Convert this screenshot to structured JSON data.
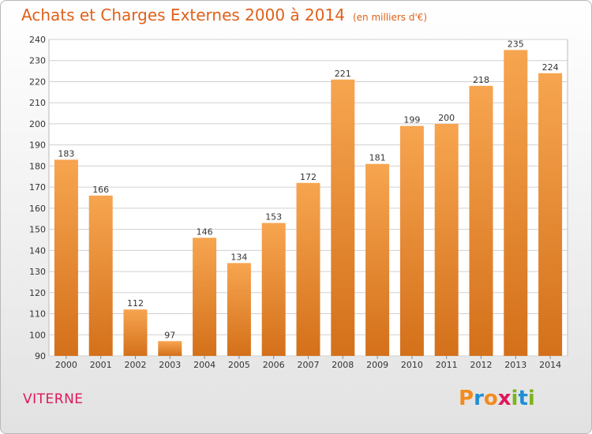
{
  "title": "Achats et Charges Externes 2000 à 2014",
  "unit": "(en milliers d'€)",
  "commune": "VITERNE",
  "logo": {
    "text": "Proxiti",
    "letters": [
      {
        "ch": "P",
        "color": "#f28b1e"
      },
      {
        "ch": "r",
        "color": "#1e8fd6"
      },
      {
        "ch": "o",
        "color": "#f28b1e"
      },
      {
        "ch": "x",
        "color": "#e0175a"
      },
      {
        "ch": "i",
        "color": "#7ab51d"
      },
      {
        "ch": "t",
        "color": "#1e8fd6"
      },
      {
        "ch": "i",
        "color": "#7ab51d"
      }
    ]
  },
  "colors": {
    "title": "#e0601a",
    "commune": "#e0175a",
    "bar_light": "#f7a550",
    "bar_dark": "#d4701a",
    "grid": "#d0d0d0"
  },
  "chart_data": {
    "type": "bar",
    "categories": [
      "2000",
      "2001",
      "2002",
      "2003",
      "2004",
      "2005",
      "2006",
      "2007",
      "2008",
      "2009",
      "2010",
      "2011",
      "2012",
      "2013",
      "2014"
    ],
    "values": [
      183,
      166,
      112,
      97,
      146,
      134,
      153,
      172,
      221,
      181,
      199,
      200,
      218,
      235,
      224
    ],
    "ylim": [
      90,
      240
    ],
    "yticks": [
      90,
      100,
      110,
      120,
      130,
      140,
      150,
      160,
      170,
      180,
      190,
      200,
      210,
      220,
      230,
      240
    ],
    "grid": true,
    "data_labels": true
  }
}
